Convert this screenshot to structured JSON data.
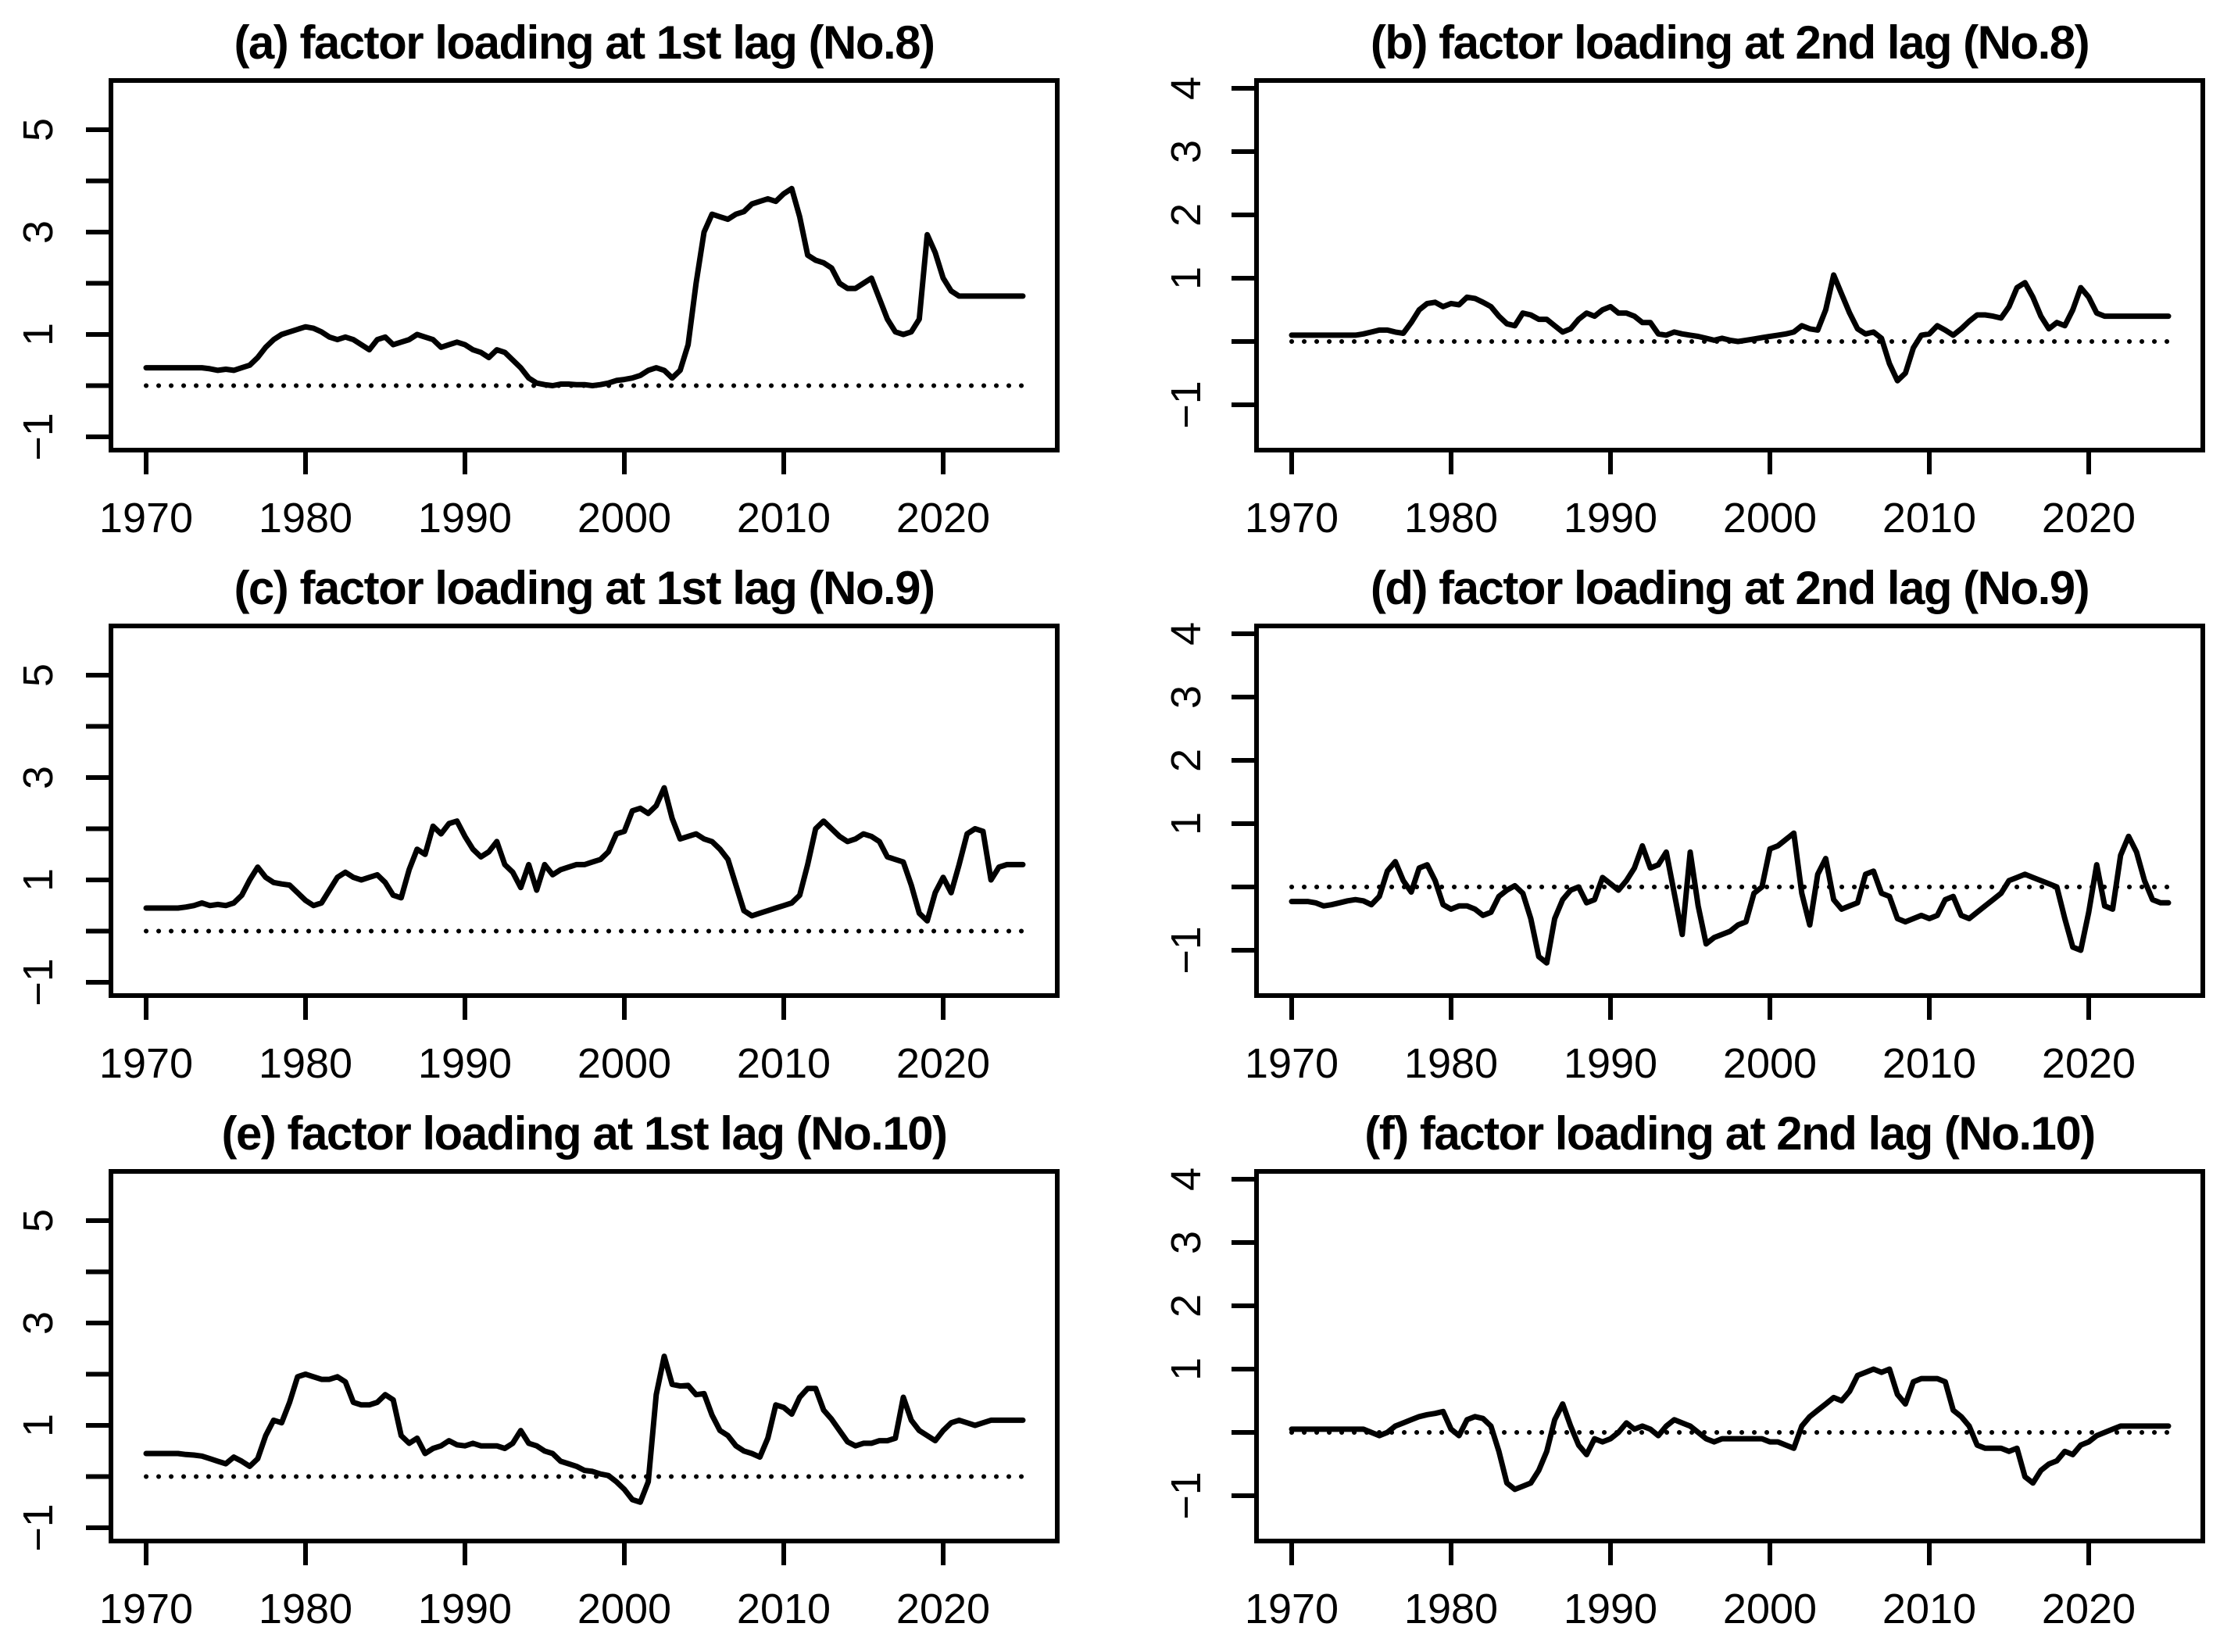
{
  "figure": {
    "background": "#ffffff",
    "foreground": "#000000",
    "layout": "3 rows x 2 columns",
    "line_color": "#000000",
    "zero_line_style": "dotted"
  },
  "chart_data": [
    {
      "id": "a",
      "type": "line",
      "title": "(a) factor loading at 1st lag (No.8)",
      "xlabel": "",
      "ylabel": "",
      "x_ticks": [
        1970,
        1980,
        1990,
        2000,
        2010,
        2020
      ],
      "y_ticks": [
        -1,
        0,
        1,
        2,
        3,
        4,
        5
      ],
      "y_labeled_ticks": [
        -1,
        1,
        3,
        5
      ],
      "xlim": [
        1967.8,
        2027.2
      ],
      "ylim": [
        -1.26,
        5.96
      ],
      "grid": false,
      "legend": "none",
      "zero_line": {
        "y": 0,
        "style": "dotted"
      },
      "series": [
        {
          "name": "factor loading",
          "color": "#000000",
          "x_start": 1970,
          "x_step": 0.5,
          "values": [
            0.35,
            0.35,
            0.35,
            0.35,
            0.35,
            0.35,
            0.35,
            0.35,
            0.33,
            0.3,
            0.32,
            0.3,
            0.35,
            0.4,
            0.55,
            0.75,
            0.9,
            1.0,
            1.05,
            1.1,
            1.15,
            1.12,
            1.05,
            0.95,
            0.9,
            0.95,
            0.9,
            0.8,
            0.7,
            0.9,
            0.95,
            0.8,
            0.85,
            0.9,
            1.0,
            0.95,
            0.9,
            0.75,
            0.8,
            0.85,
            0.8,
            0.7,
            0.65,
            0.55,
            0.7,
            0.65,
            0.5,
            0.35,
            0.15,
            0.05,
            0.02,
            0.0,
            0.03,
            0.03,
            0.02,
            0.02,
            0.0,
            0.02,
            0.05,
            0.1,
            0.12,
            0.15,
            0.2,
            0.3,
            0.35,
            0.3,
            0.15,
            0.3,
            0.8,
            2.0,
            3.0,
            3.35,
            3.3,
            3.25,
            3.35,
            3.4,
            3.55,
            3.6,
            3.65,
            3.6,
            3.75,
            3.85,
            3.3,
            2.55,
            2.45,
            2.4,
            2.3,
            2.0,
            1.9,
            1.9,
            2.0,
            2.1,
            1.7,
            1.3,
            1.05,
            1.0,
            1.05,
            1.3,
            2.95,
            2.6,
            2.1,
            1.85,
            1.75,
            1.75,
            1.75,
            1.75,
            1.75,
            1.75,
            1.75,
            1.75,
            1.75
          ]
        }
      ]
    },
    {
      "id": "b",
      "type": "line",
      "title": "(b) factor loading at 2nd lag (No.8)",
      "xlabel": "",
      "ylabel": "",
      "x_ticks": [
        1970,
        1980,
        1990,
        2000,
        2010,
        2020
      ],
      "y_ticks": [
        -1,
        0,
        1,
        2,
        3,
        4
      ],
      "y_labeled_ticks": [
        -1,
        1,
        2,
        3,
        4
      ],
      "xlim": [
        1967.8,
        2027.2
      ],
      "ylim": [
        -1.7,
        4.12
      ],
      "grid": false,
      "legend": "none",
      "zero_line": {
        "y": 0,
        "style": "dotted"
      },
      "series": [
        {
          "name": "factor loading",
          "color": "#000000",
          "x_start": 1970,
          "x_step": 0.5,
          "values": [
            0.1,
            0.1,
            0.1,
            0.1,
            0.1,
            0.1,
            0.1,
            0.1,
            0.1,
            0.12,
            0.15,
            0.18,
            0.18,
            0.15,
            0.13,
            0.3,
            0.5,
            0.6,
            0.62,
            0.55,
            0.6,
            0.58,
            0.7,
            0.68,
            0.62,
            0.55,
            0.4,
            0.28,
            0.25,
            0.45,
            0.42,
            0.35,
            0.35,
            0.25,
            0.15,
            0.2,
            0.35,
            0.45,
            0.4,
            0.5,
            0.55,
            0.45,
            0.45,
            0.4,
            0.3,
            0.3,
            0.12,
            0.1,
            0.15,
            0.12,
            0.1,
            0.08,
            0.05,
            0.02,
            0.05,
            0.02,
            0.0,
            0.02,
            0.04,
            0.06,
            0.08,
            0.1,
            0.12,
            0.15,
            0.25,
            0.2,
            0.18,
            0.5,
            1.05,
            0.75,
            0.45,
            0.2,
            0.12,
            0.15,
            0.05,
            -0.35,
            -0.62,
            -0.5,
            -0.1,
            0.1,
            0.12,
            0.25,
            0.18,
            0.1,
            0.2,
            0.32,
            0.42,
            0.42,
            0.4,
            0.37,
            0.55,
            0.85,
            0.93,
            0.7,
            0.4,
            0.2,
            0.3,
            0.25,
            0.5,
            0.85,
            0.7,
            0.45,
            0.4,
            0.4,
            0.4,
            0.4,
            0.4,
            0.4,
            0.4,
            0.4,
            0.4
          ]
        }
      ]
    },
    {
      "id": "c",
      "type": "line",
      "title": "(c) factor loading at 1st lag (No.9)",
      "xlabel": "",
      "ylabel": "",
      "x_ticks": [
        1970,
        1980,
        1990,
        2000,
        2010,
        2020
      ],
      "y_ticks": [
        -1,
        0,
        1,
        2,
        3,
        4,
        5
      ],
      "y_labeled_ticks": [
        -1,
        1,
        3,
        5
      ],
      "xlim": [
        1967.8,
        2027.2
      ],
      "ylim": [
        -1.26,
        5.96
      ],
      "grid": false,
      "legend": "none",
      "zero_line": {
        "y": 0,
        "style": "dotted"
      },
      "series": [
        {
          "name": "factor loading",
          "color": "#000000",
          "x_start": 1970,
          "x_step": 0.5,
          "values": [
            0.45,
            0.45,
            0.45,
            0.45,
            0.45,
            0.47,
            0.5,
            0.55,
            0.5,
            0.52,
            0.5,
            0.55,
            0.7,
            1.0,
            1.25,
            1.05,
            0.95,
            0.92,
            0.9,
            0.75,
            0.6,
            0.5,
            0.55,
            0.8,
            1.05,
            1.15,
            1.05,
            1.0,
            1.05,
            1.1,
            0.95,
            0.7,
            0.65,
            1.2,
            1.6,
            1.5,
            2.05,
            1.9,
            2.1,
            2.15,
            1.85,
            1.6,
            1.45,
            1.55,
            1.75,
            1.3,
            1.15,
            0.85,
            1.3,
            0.8,
            1.3,
            1.1,
            1.2,
            1.25,
            1.3,
            1.3,
            1.35,
            1.4,
            1.55,
            1.9,
            1.95,
            2.35,
            2.4,
            2.3,
            2.45,
            2.8,
            2.2,
            1.8,
            1.85,
            1.9,
            1.8,
            1.75,
            1.6,
            1.4,
            0.9,
            0.4,
            0.3,
            0.35,
            0.4,
            0.45,
            0.5,
            0.55,
            0.7,
            1.3,
            2.0,
            2.15,
            2.0,
            1.85,
            1.75,
            1.8,
            1.9,
            1.85,
            1.75,
            1.45,
            1.4,
            1.35,
            0.9,
            0.35,
            0.2,
            0.75,
            1.05,
            0.75,
            1.3,
            1.9,
            2.0,
            1.95,
            1.0,
            1.25,
            1.3,
            1.3,
            1.3
          ]
        }
      ]
    },
    {
      "id": "d",
      "type": "line",
      "title": "(d) factor loading at 2nd lag (No.9)",
      "xlabel": "",
      "ylabel": "",
      "x_ticks": [
        1970,
        1980,
        1990,
        2000,
        2010,
        2020
      ],
      "y_ticks": [
        -1,
        0,
        1,
        2,
        3,
        4
      ],
      "y_labeled_ticks": [
        -1,
        1,
        2,
        3,
        4
      ],
      "xlim": [
        1967.8,
        2027.2
      ],
      "ylim": [
        -1.7,
        4.12
      ],
      "grid": false,
      "legend": "none",
      "zero_line": {
        "y": 0,
        "style": "dotted"
      },
      "series": [
        {
          "name": "factor loading",
          "color": "#000000",
          "x_start": 1970,
          "x_step": 0.5,
          "values": [
            -0.23,
            -0.23,
            -0.23,
            -0.25,
            -0.3,
            -0.28,
            -0.25,
            -0.22,
            -0.2,
            -0.22,
            -0.28,
            -0.15,
            0.25,
            0.4,
            0.1,
            -0.08,
            0.3,
            0.35,
            0.1,
            -0.28,
            -0.35,
            -0.3,
            -0.3,
            -0.35,
            -0.45,
            -0.4,
            -0.15,
            -0.05,
            0.02,
            -0.1,
            -0.5,
            -1.1,
            -1.2,
            -0.5,
            -0.2,
            -0.05,
            0.0,
            -0.25,
            -0.2,
            0.15,
            0.05,
            -0.05,
            0.1,
            0.3,
            0.65,
            0.3,
            0.35,
            0.55,
            -0.1,
            -0.75,
            0.55,
            -0.3,
            -0.9,
            -0.8,
            -0.75,
            -0.7,
            -0.6,
            -0.55,
            -0.1,
            0.0,
            0.6,
            0.65,
            0.75,
            0.85,
            -0.1,
            -0.6,
            0.2,
            0.45,
            -0.2,
            -0.35,
            -0.3,
            -0.25,
            0.2,
            0.25,
            -0.1,
            -0.15,
            -0.5,
            -0.55,
            -0.5,
            -0.45,
            -0.5,
            -0.45,
            -0.2,
            -0.15,
            -0.45,
            -0.5,
            -0.4,
            -0.3,
            -0.2,
            -0.1,
            0.1,
            0.15,
            0.2,
            0.15,
            0.1,
            0.05,
            0.0,
            -0.5,
            -0.95,
            -1.0,
            -0.4,
            0.35,
            -0.3,
            -0.35,
            0.5,
            0.8,
            0.55,
            0.1,
            -0.2,
            -0.25,
            -0.25
          ]
        }
      ]
    },
    {
      "id": "e",
      "type": "line",
      "title": "(e) factor loading at 1st lag (No.10)",
      "xlabel": "",
      "ylabel": "",
      "x_ticks": [
        1970,
        1980,
        1990,
        2000,
        2010,
        2020
      ],
      "y_ticks": [
        -1,
        0,
        1,
        2,
        3,
        4,
        5
      ],
      "y_labeled_ticks": [
        -1,
        1,
        3,
        5
      ],
      "xlim": [
        1967.8,
        2027.2
      ],
      "ylim": [
        -1.26,
        5.96
      ],
      "grid": false,
      "legend": "none",
      "zero_line": {
        "y": 0,
        "style": "dotted"
      },
      "series": [
        {
          "name": "factor loading",
          "color": "#000000",
          "x_start": 1970,
          "x_step": 0.5,
          "values": [
            0.45,
            0.45,
            0.45,
            0.45,
            0.45,
            0.43,
            0.42,
            0.4,
            0.35,
            0.3,
            0.25,
            0.38,
            0.3,
            0.2,
            0.35,
            0.8,
            1.1,
            1.05,
            1.45,
            1.95,
            2.0,
            1.95,
            1.9,
            1.9,
            1.95,
            1.85,
            1.45,
            1.4,
            1.4,
            1.45,
            1.6,
            1.5,
            0.8,
            0.65,
            0.75,
            0.45,
            0.55,
            0.6,
            0.7,
            0.62,
            0.6,
            0.65,
            0.6,
            0.6,
            0.6,
            0.55,
            0.65,
            0.9,
            0.65,
            0.6,
            0.5,
            0.45,
            0.3,
            0.25,
            0.2,
            0.12,
            0.1,
            0.05,
            0.02,
            -0.1,
            -0.25,
            -0.45,
            -0.5,
            -0.1,
            1.6,
            2.35,
            1.8,
            1.77,
            1.78,
            1.6,
            1.62,
            1.2,
            0.9,
            0.8,
            0.6,
            0.5,
            0.45,
            0.38,
            0.75,
            1.4,
            1.35,
            1.22,
            1.55,
            1.72,
            1.72,
            1.3,
            1.12,
            0.9,
            0.68,
            0.6,
            0.65,
            0.65,
            0.7,
            0.7,
            0.75,
            1.55,
            1.1,
            0.9,
            0.8,
            0.7,
            0.9,
            1.05,
            1.1,
            1.05,
            1.0,
            1.05,
            1.1,
            1.1,
            1.1,
            1.1,
            1.1
          ]
        }
      ]
    },
    {
      "id": "f",
      "type": "line",
      "title": "(f) factor loading at 2nd lag (No.10)",
      "xlabel": "",
      "ylabel": "",
      "x_ticks": [
        1970,
        1980,
        1990,
        2000,
        2010,
        2020
      ],
      "y_ticks": [
        -1,
        0,
        1,
        2,
        3,
        4
      ],
      "y_labeled_ticks": [
        -1,
        1,
        2,
        3,
        4
      ],
      "xlim": [
        1967.8,
        2027.2
      ],
      "ylim": [
        -1.7,
        4.12
      ],
      "grid": false,
      "legend": "none",
      "zero_line": {
        "y": 0,
        "style": "dotted"
      },
      "series": [
        {
          "name": "factor loading",
          "color": "#000000",
          "x_start": 1970,
          "x_step": 0.5,
          "values": [
            0.05,
            0.05,
            0.05,
            0.05,
            0.05,
            0.05,
            0.05,
            0.05,
            0.05,
            0.05,
            0.0,
            -0.05,
            0.0,
            0.1,
            0.15,
            0.2,
            0.25,
            0.28,
            0.3,
            0.33,
            0.05,
            -0.05,
            0.2,
            0.25,
            0.22,
            0.1,
            -0.3,
            -0.8,
            -0.9,
            -0.85,
            -0.8,
            -0.6,
            -0.3,
            0.2,
            0.45,
            0.1,
            -0.2,
            -0.35,
            -0.1,
            -0.15,
            -0.1,
            0.0,
            0.15,
            0.05,
            0.1,
            0.05,
            -0.05,
            0.1,
            0.2,
            0.15,
            0.1,
            0.0,
            -0.1,
            -0.15,
            -0.1,
            -0.1,
            -0.1,
            -0.1,
            -0.1,
            -0.1,
            -0.15,
            -0.15,
            -0.2,
            -0.25,
            0.1,
            0.25,
            0.35,
            0.45,
            0.55,
            0.5,
            0.65,
            0.9,
            0.95,
            1.0,
            0.95,
            1.0,
            0.6,
            0.45,
            0.8,
            0.85,
            0.85,
            0.85,
            0.8,
            0.35,
            0.25,
            0.1,
            -0.2,
            -0.25,
            -0.25,
            -0.25,
            -0.3,
            -0.25,
            -0.7,
            -0.8,
            -0.6,
            -0.5,
            -0.45,
            -0.3,
            -0.35,
            -0.2,
            -0.15,
            -0.05,
            0.0,
            0.05,
            0.1,
            0.1,
            0.1,
            0.1,
            0.1,
            0.1,
            0.1
          ]
        }
      ]
    }
  ]
}
